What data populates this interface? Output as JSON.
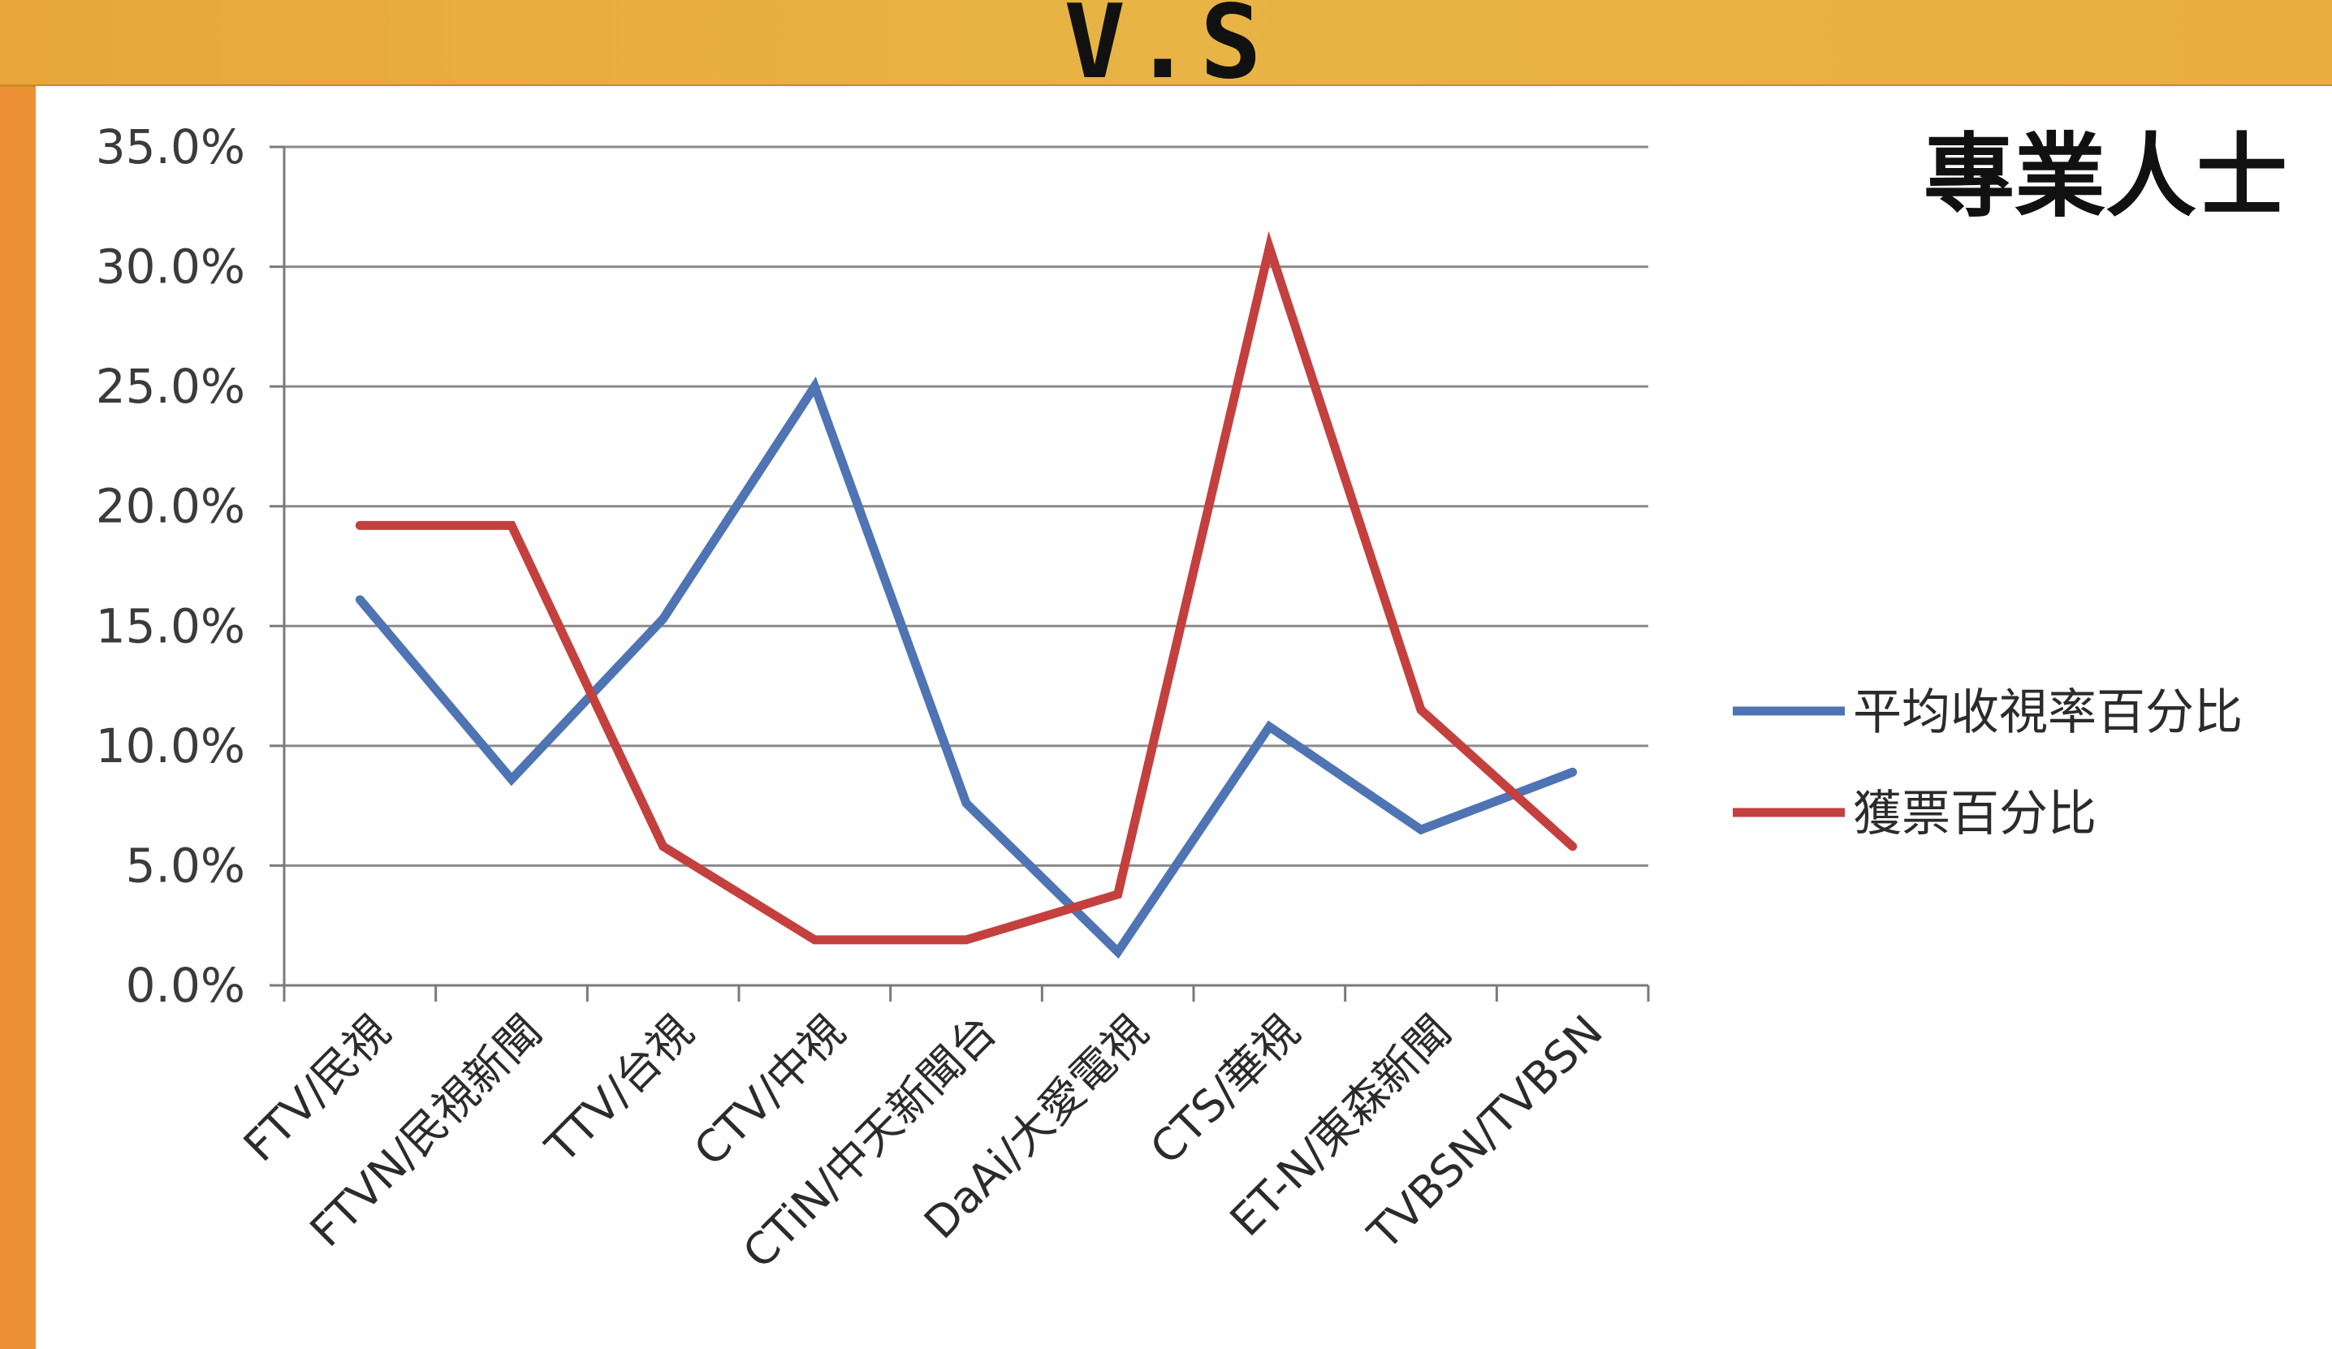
{
  "header": {
    "title": "V.S"
  },
  "colors": {
    "series_blue": "#4f74b4",
    "series_red": "#c4403f",
    "grid": "#8a8a8a"
  },
  "chart_data": {
    "type": "line",
    "title": "專業人士",
    "categories": [
      "FTV/民視",
      "FTVN/民視新聞",
      "TTV/台視",
      "CTV/中視",
      "CTiN/中天新聞台",
      "DaAi/大愛電視",
      "CTS/華視",
      "ET-N/東森新聞",
      "TVBSN/TVBSN"
    ],
    "y_tick_labels": [
      "0.0%",
      "5.0%",
      "10.0%",
      "15.0%",
      "20.0%",
      "25.0%",
      "30.0%",
      "35.0%"
    ],
    "ylim": [
      0,
      35
    ],
    "y_unit": "%",
    "grid": true,
    "legend_position": "right",
    "series": [
      {
        "name": "平均收視率百分比",
        "color": "#4f74b4",
        "values": [
          16.1,
          8.6,
          15.3,
          25.0,
          7.6,
          1.4,
          10.8,
          6.5,
          8.9
        ]
      },
      {
        "name": "獲票百分比",
        "color": "#c4403f",
        "values": [
          19.2,
          19.2,
          5.8,
          1.9,
          1.9,
          3.8,
          30.8,
          11.5,
          5.8
        ]
      }
    ]
  }
}
